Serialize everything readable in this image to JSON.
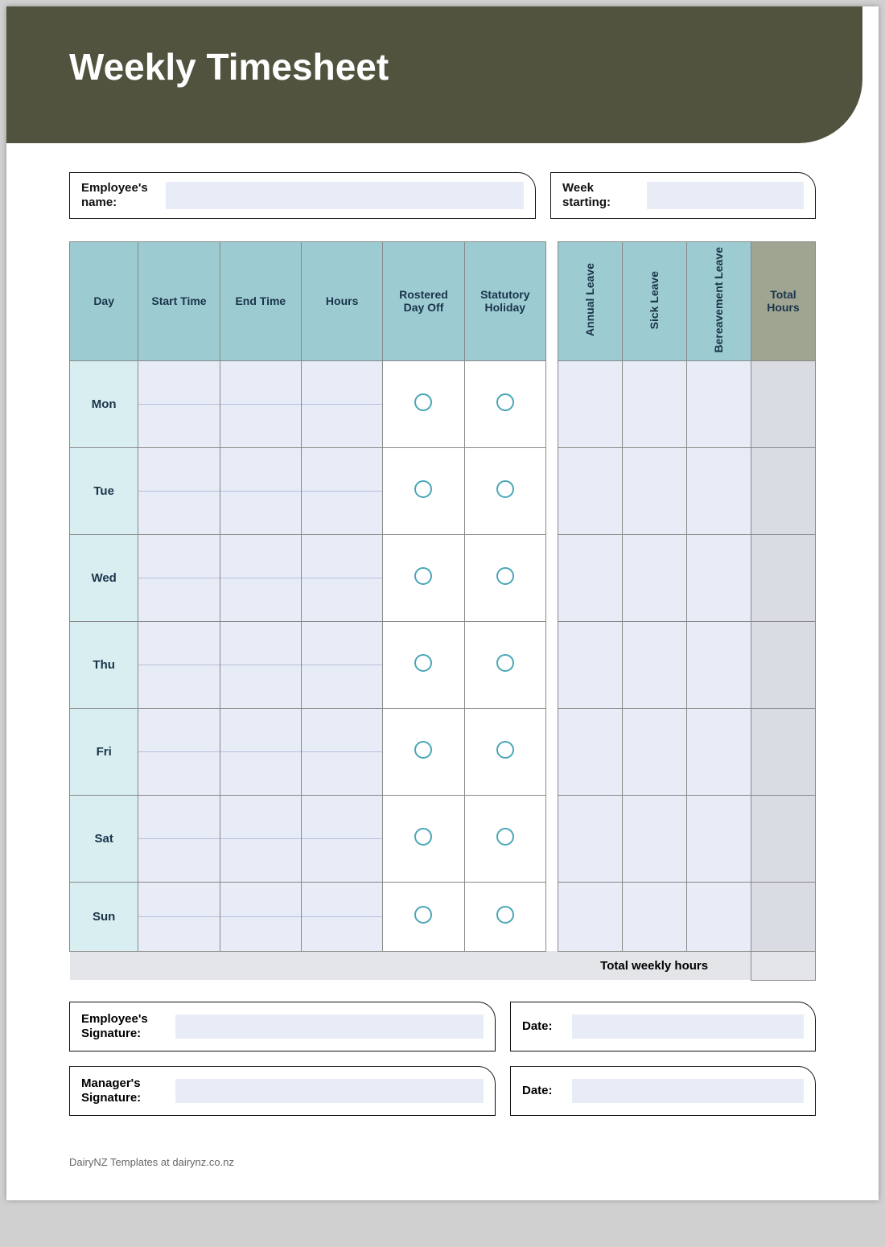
{
  "title": "Weekly Timesheet",
  "labels": {
    "employee_name": "Employee's name:",
    "week_starting": "Week starting:",
    "employee_signature": "Employee's Signature:",
    "manager_signature": "Manager's Signature:",
    "date": "Date:",
    "total_weekly": "Total weekly hours"
  },
  "columns": {
    "day": "Day",
    "start": "Start Time",
    "end": "End Time",
    "hours": "Hours",
    "rdo": "Rostered Day Off",
    "stat": "Statutory Holiday",
    "annual": "Annual Leave",
    "sick": "Sick Leave",
    "bereave": "Bereavement Leave",
    "total": "Total Hours"
  },
  "days": [
    "Mon",
    "Tue",
    "Wed",
    "Thu",
    "Fri",
    "Sat",
    "Sun"
  ],
  "footer": "DairyNZ Templates at dairynz.co.nz",
  "colors": {
    "header_band": "#51533e",
    "teal_header": "#9dcbd2",
    "olive_header": "#a0a592",
    "day_bg": "#d8eef0",
    "field_bg": "#e8ecf7",
    "total_col_bg": "#d9dce3",
    "circle_border": "#4aa6b7",
    "total_row_bg": "#e3e5e9"
  },
  "fields": {
    "employee_name": "",
    "week_starting": "",
    "employee_signature": "",
    "employee_sig_date": "",
    "manager_signature": "",
    "manager_sig_date": ""
  }
}
